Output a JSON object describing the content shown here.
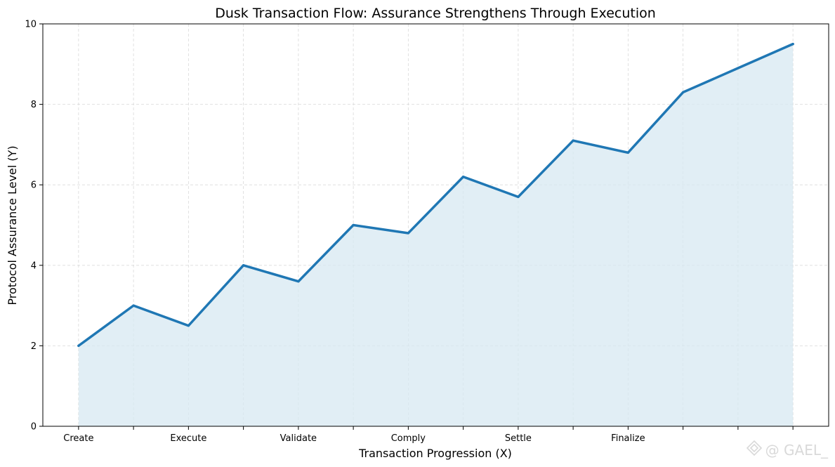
{
  "chart_data": {
    "type": "area",
    "title": "Dusk Transaction Flow: Assurance Strengthens Through Execution",
    "xlabel": "Transaction Progression (X)",
    "ylabel": "Protocol Assurance Level (Y)",
    "x": [
      0,
      1,
      2,
      3,
      4,
      5,
      6,
      7,
      8,
      9,
      10,
      11,
      12,
      13
    ],
    "x_tick_positions": [
      0,
      1,
      2,
      3,
      4,
      5,
      6,
      7,
      8,
      9,
      10,
      11,
      12,
      13
    ],
    "x_tick_labels": [
      "Create",
      "",
      "Execute",
      "",
      "Validate",
      "",
      "Comply",
      "",
      "Settle",
      "",
      "Finalize",
      "",
      "",
      ""
    ],
    "values": [
      2.0,
      3.0,
      2.5,
      4.0,
      3.6,
      5.0,
      4.8,
      6.2,
      5.7,
      7.1,
      6.8,
      8.3,
      8.9,
      9.5
    ],
    "ylim": [
      0,
      10
    ],
    "yticks": [
      0,
      2,
      4,
      6,
      8,
      10
    ],
    "grid": true,
    "colors": {
      "line": "#1f77b4",
      "fill": "#d7e8f2"
    }
  },
  "watermark": {
    "text": "@ GAEL_",
    "icon": "binance-diamond-icon"
  }
}
